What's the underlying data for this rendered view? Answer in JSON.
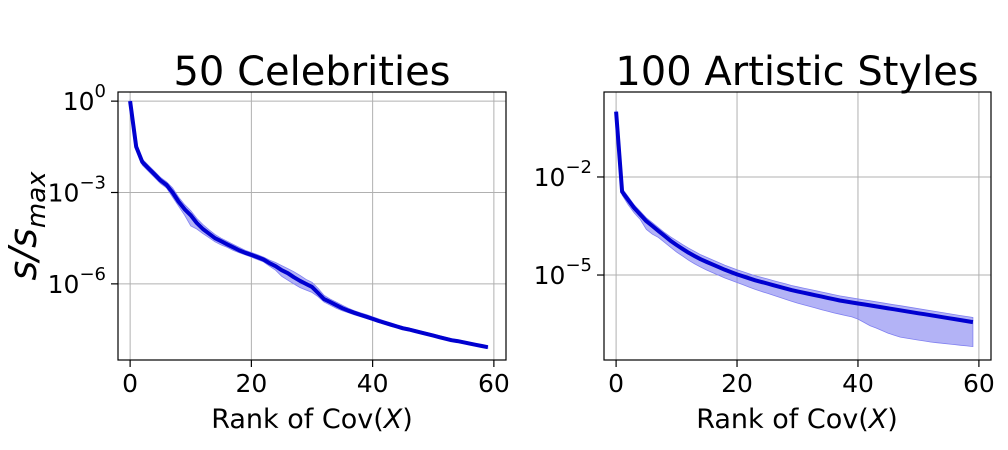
{
  "chart_data": [
    {
      "type": "line",
      "title": "50 Celebrities",
      "xlabel_prefix": "Rank of Cov(",
      "xlabel_var": "X",
      "xlabel_suffix": ")",
      "ylabel_main": "s/s",
      "ylabel_sub": "max",
      "yscale": "log",
      "xlim": [
        -2,
        62
      ],
      "ylim_log10": [
        -8.5,
        0.3
      ],
      "xticks": [
        0,
        20,
        40,
        60
      ],
      "xtick_labels": [
        "0",
        "20",
        "40",
        "60"
      ],
      "yticks_log10": [
        0,
        -3,
        -6
      ],
      "ytick_labels": [
        {
          "base": "10",
          "exp": "0"
        },
        {
          "base": "10",
          "exp": "−3"
        },
        {
          "base": "10",
          "exp": "−6"
        }
      ],
      "grid": true,
      "line_color": "#0000d0",
      "band_color": "#8080f0",
      "series": [
        {
          "x": [
            0,
            1,
            2,
            3,
            4,
            5,
            6,
            7,
            8,
            9,
            10,
            11,
            12,
            13,
            14,
            15,
            16,
            17,
            18,
            19,
            20,
            21,
            22,
            23,
            24,
            25,
            26,
            27,
            28,
            29,
            30,
            31,
            32,
            33,
            34,
            35,
            36,
            37,
            38,
            39,
            40,
            41,
            42,
            43,
            44,
            45,
            46,
            47,
            48,
            49,
            50,
            51,
            52,
            53,
            54,
            55,
            56,
            57,
            58,
            59
          ],
          "log10_mean": [
            0.0,
            -1.5,
            -2.0,
            -2.2,
            -2.4,
            -2.6,
            -2.75,
            -3.0,
            -3.3,
            -3.55,
            -3.75,
            -4.0,
            -4.2,
            -4.35,
            -4.5,
            -4.6,
            -4.7,
            -4.8,
            -4.9,
            -4.98,
            -5.05,
            -5.12,
            -5.2,
            -5.32,
            -5.42,
            -5.55,
            -5.65,
            -5.78,
            -5.9,
            -6.0,
            -6.1,
            -6.3,
            -6.5,
            -6.6,
            -6.7,
            -6.8,
            -6.88,
            -6.95,
            -7.02,
            -7.08,
            -7.15,
            -7.22,
            -7.28,
            -7.34,
            -7.4,
            -7.46,
            -7.5,
            -7.55,
            -7.6,
            -7.65,
            -7.7,
            -7.75,
            -7.8,
            -7.85,
            -7.88,
            -7.92,
            -7.96,
            -8.0,
            -8.04,
            -8.08
          ],
          "log10_low": [
            -0.05,
            -1.6,
            -2.1,
            -2.3,
            -2.5,
            -2.7,
            -2.85,
            -3.15,
            -3.45,
            -3.75,
            -4.1,
            -4.2,
            -4.35,
            -4.48,
            -4.62,
            -4.72,
            -4.8,
            -4.9,
            -4.98,
            -5.05,
            -5.12,
            -5.2,
            -5.28,
            -5.42,
            -5.55,
            -5.75,
            -5.88,
            -6.0,
            -6.12,
            -6.2,
            -6.28,
            -6.42,
            -6.6,
            -6.7,
            -6.8,
            -6.88,
            -6.95,
            -7.02,
            -7.08,
            -7.14,
            -7.2,
            -7.27,
            -7.33,
            -7.39,
            -7.44,
            -7.5,
            -7.54,
            -7.59,
            -7.64,
            -7.69,
            -7.74,
            -7.79,
            -7.84,
            -7.89,
            -7.92,
            -7.96,
            -8.0,
            -8.04,
            -8.08,
            -8.12
          ],
          "log10_high": [
            0.05,
            -1.4,
            -1.9,
            -2.1,
            -2.3,
            -2.5,
            -2.65,
            -2.85,
            -3.15,
            -3.4,
            -3.6,
            -3.85,
            -4.05,
            -4.22,
            -4.38,
            -4.5,
            -4.6,
            -4.7,
            -4.8,
            -4.9,
            -4.97,
            -5.04,
            -5.12,
            -5.22,
            -5.3,
            -5.4,
            -5.5,
            -5.6,
            -5.72,
            -5.85,
            -5.95,
            -6.15,
            -6.38,
            -6.5,
            -6.6,
            -6.7,
            -6.8,
            -6.88,
            -6.95,
            -7.01,
            -7.08,
            -7.15,
            -7.22,
            -7.28,
            -7.34,
            -7.4,
            -7.45,
            -7.5,
            -7.55,
            -7.6,
            -7.65,
            -7.7,
            -7.75,
            -7.8,
            -7.84,
            -7.88,
            -7.92,
            -7.96,
            -8.0,
            -8.04
          ]
        }
      ]
    },
    {
      "type": "line",
      "title": "100 Artistic Styles",
      "xlabel_prefix": "Rank of Cov(",
      "xlabel_var": "X",
      "xlabel_suffix": ")",
      "yscale": "log",
      "xlim": [
        -2,
        62
      ],
      "ylim_log10": [
        -7.6,
        0.6
      ],
      "xticks": [
        0,
        20,
        40,
        60
      ],
      "xtick_labels": [
        "0",
        "20",
        "40",
        "60"
      ],
      "yticks_log10": [
        -2,
        -5
      ],
      "ytick_labels": [
        {
          "base": "10",
          "exp": "−2"
        },
        {
          "base": "10",
          "exp": "−5"
        }
      ],
      "grid": true,
      "line_color": "#0000d0",
      "band_color": "#8080f0",
      "series": [
        {
          "x": [
            0,
            1,
            2,
            3,
            4,
            5,
            6,
            7,
            8,
            9,
            10,
            11,
            12,
            13,
            14,
            15,
            16,
            17,
            18,
            19,
            20,
            21,
            22,
            23,
            24,
            25,
            26,
            27,
            28,
            29,
            30,
            31,
            32,
            33,
            34,
            35,
            36,
            37,
            38,
            39,
            40,
            41,
            42,
            43,
            44,
            45,
            46,
            47,
            48,
            49,
            50,
            51,
            52,
            53,
            54,
            55,
            56,
            57,
            58,
            59
          ],
          "log10_mean": [
            0.0,
            -2.45,
            -2.7,
            -2.95,
            -3.15,
            -3.35,
            -3.5,
            -3.65,
            -3.8,
            -3.95,
            -4.08,
            -4.2,
            -4.32,
            -4.42,
            -4.52,
            -4.6,
            -4.68,
            -4.76,
            -4.84,
            -4.91,
            -4.98,
            -5.04,
            -5.1,
            -5.16,
            -5.21,
            -5.26,
            -5.31,
            -5.36,
            -5.41,
            -5.46,
            -5.5,
            -5.54,
            -5.58,
            -5.62,
            -5.66,
            -5.7,
            -5.74,
            -5.78,
            -5.81,
            -5.84,
            -5.87,
            -5.9,
            -5.93,
            -5.96,
            -5.99,
            -6.02,
            -6.05,
            -6.08,
            -6.11,
            -6.14,
            -6.17,
            -6.2,
            -6.23,
            -6.26,
            -6.29,
            -6.32,
            -6.35,
            -6.38,
            -6.41,
            -6.44
          ],
          "log10_low": [
            -0.05,
            -2.55,
            -2.85,
            -3.1,
            -3.3,
            -3.6,
            -3.75,
            -3.85,
            -4.0,
            -4.15,
            -4.3,
            -4.42,
            -4.55,
            -4.66,
            -4.76,
            -4.85,
            -4.93,
            -5.01,
            -5.09,
            -5.16,
            -5.23,
            -5.3,
            -5.37,
            -5.44,
            -5.5,
            -5.56,
            -5.62,
            -5.68,
            -5.74,
            -5.8,
            -5.86,
            -5.91,
            -5.96,
            -6.01,
            -6.06,
            -6.11,
            -6.16,
            -6.2,
            -6.24,
            -6.28,
            -6.35,
            -6.45,
            -6.55,
            -6.62,
            -6.7,
            -6.78,
            -6.84,
            -6.9,
            -6.93,
            -6.96,
            -6.99,
            -7.02,
            -7.05,
            -7.07,
            -7.09,
            -7.11,
            -7.13,
            -7.15,
            -7.17,
            -7.19
          ],
          "log10_high": [
            0.05,
            -2.35,
            -2.6,
            -2.85,
            -3.05,
            -3.25,
            -3.4,
            -3.55,
            -3.7,
            -3.83,
            -3.95,
            -4.07,
            -4.18,
            -4.28,
            -4.38,
            -4.46,
            -4.54,
            -4.62,
            -4.7,
            -4.77,
            -4.84,
            -4.9,
            -4.96,
            -5.02,
            -5.07,
            -5.12,
            -5.17,
            -5.22,
            -5.27,
            -5.32,
            -5.36,
            -5.4,
            -5.44,
            -5.48,
            -5.52,
            -5.56,
            -5.6,
            -5.64,
            -5.67,
            -5.7,
            -5.73,
            -5.76,
            -5.79,
            -5.82,
            -5.85,
            -5.88,
            -5.91,
            -5.94,
            -5.97,
            -6.0,
            -6.03,
            -6.06,
            -6.09,
            -6.12,
            -6.15,
            -6.18,
            -6.21,
            -6.24,
            -6.27,
            -6.3
          ]
        }
      ]
    }
  ]
}
